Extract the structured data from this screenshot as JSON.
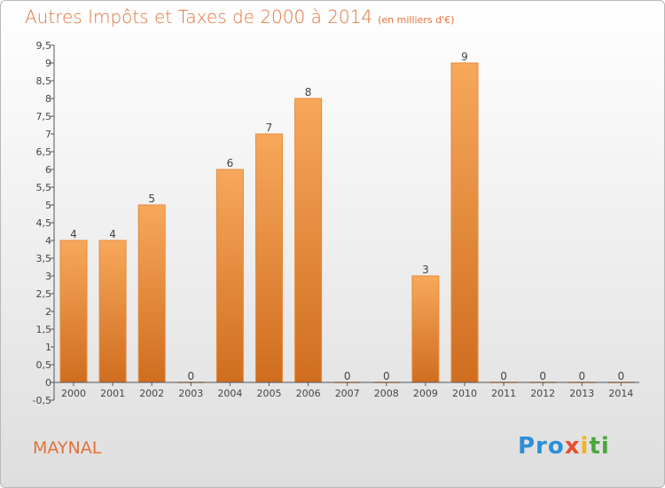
{
  "header": {
    "title": "Autres Impôts et Taxes de 2000 à 2014",
    "unit": "(en milliers d'€)"
  },
  "footer": {
    "commune": "MAYNAL",
    "logo_text": "Proxiti"
  },
  "colors": {
    "accent": "#e0733a",
    "bar_light": "#f7a85b",
    "bar_dark": "#d06d1f",
    "axis": "#555555"
  },
  "chart_data": {
    "type": "bar",
    "title": "Autres Impôts et Taxes de 2000 à 2014",
    "subtitle": "(en milliers d'€)",
    "xlabel": "",
    "ylabel": "",
    "categories": [
      "2000",
      "2001",
      "2002",
      "2003",
      "2004",
      "2005",
      "2006",
      "2007",
      "2008",
      "2009",
      "2010",
      "2011",
      "2012",
      "2013",
      "2014"
    ],
    "values": [
      4,
      4,
      5,
      0,
      6,
      7,
      8,
      0,
      0,
      3,
      9,
      0,
      0,
      0,
      0
    ],
    "data_labels": [
      "4",
      "4",
      "5",
      "0",
      "6",
      "7",
      "8",
      "0",
      "0",
      "3",
      "9",
      "0",
      "0",
      "0",
      "0"
    ],
    "ylim": [
      -0.5,
      9.5
    ],
    "y_ticks": [
      "-0,5",
      "0",
      "0,5",
      "1",
      "1,5",
      "2",
      "2,5",
      "3",
      "3,5",
      "4",
      "4,5",
      "5",
      "5,5",
      "6",
      "6,5",
      "7",
      "7,5",
      "8",
      "8,5",
      "9",
      "9,5"
    ],
    "grid": false,
    "legend": "none"
  }
}
